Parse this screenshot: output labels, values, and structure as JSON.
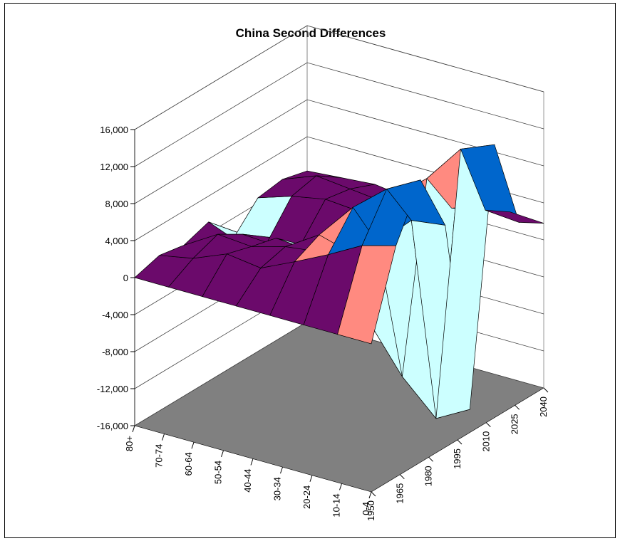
{
  "chart_data": {
    "type": "surface",
    "title": "China Second Differences",
    "z_axis": {
      "ticks": [
        "16,000",
        "12,000",
        "8,000",
        "4,000",
        "0",
        "-4,000",
        "-8,000",
        "-12,000",
        "-16,000"
      ],
      "range": [
        -16000,
        16000
      ]
    },
    "age_axis_labels": [
      "80+",
      "70-74",
      "60-64",
      "50-54",
      "40-44",
      "30-34",
      "20-24",
      "10-14",
      "0-4"
    ],
    "year_axis_labels": [
      "1950",
      "1965",
      "1980",
      "1995",
      "2010",
      "2025",
      "2040"
    ],
    "band_colors": [
      "#8b88f0",
      "#a04a7b",
      "#ffffcc",
      "#ccffff",
      "#6b0a6b",
      "#ff8a80",
      "#0066cc",
      "#ccccff"
    ],
    "floor_color": "#808080",
    "surface_ridges": [
      {
        "age": "80+",
        "values": [
          0,
          800,
          300,
          1200,
          -2200,
          600,
          1000,
          300
        ]
      },
      {
        "age": "70-74",
        "values": [
          0,
          1500,
          2500,
          900,
          -1600,
          1800,
          2400,
          600
        ]
      },
      {
        "age": "60-64",
        "values": [
          0,
          3000,
          2200,
          1500,
          -800,
          2500,
          2000,
          900
        ]
      },
      {
        "age": "50-54",
        "values": [
          0,
          2500,
          3200,
          1200,
          -3000,
          2200,
          1600,
          400
        ]
      },
      {
        "age": "40-44",
        "values": [
          0,
          4200,
          5500,
          2400,
          -7000,
          4800,
          2600,
          1200
        ]
      },
      {
        "age": "30-34",
        "values": [
          0,
          6000,
          9500,
          4000,
          -12000,
          7800,
          3000,
          1500
        ]
      },
      {
        "age": "20-24",
        "values": [
          0,
          8000,
          12500,
          7500,
          -15500,
          12000,
          3800,
          2000
        ]
      },
      {
        "age": "10-14",
        "values": [
          0,
          9000,
          14500,
          8000,
          -13500,
          13500,
          3500,
          1800
        ]
      }
    ]
  }
}
